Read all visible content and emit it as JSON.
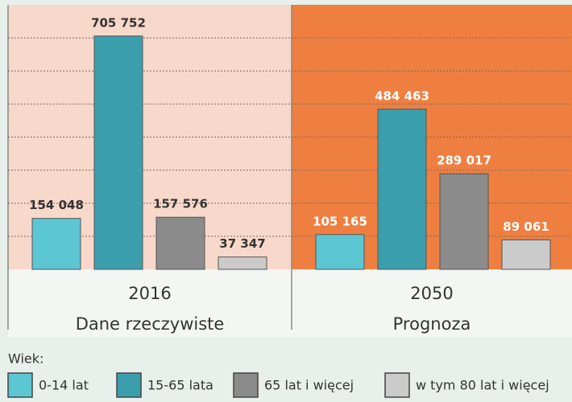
{
  "chart_data": {
    "type": "bar",
    "categories": [
      "2016",
      "2050"
    ],
    "category_subtitles": [
      "Dane rzeczywiste",
      "Prognoza"
    ],
    "series": [
      {
        "name": "0-14 lat",
        "color": "#5cc6d3",
        "values": [
          154048,
          105165
        ],
        "value_labels": [
          "154 048",
          "105 165"
        ]
      },
      {
        "name": "15-65 lata",
        "color": "#3b9eac",
        "values": [
          705752,
          484463
        ],
        "value_labels": [
          "705 752",
          "484 463"
        ]
      },
      {
        "name": "65 lat i więcej",
        "color": "#8b8b8b",
        "values": [
          157576,
          289017
        ],
        "value_labels": [
          "157 576",
          "289 017"
        ]
      },
      {
        "name": "w tym 80 lat i więcej",
        "color": "#cbcbcb",
        "values": [
          37347,
          89061
        ],
        "value_labels": [
          "37 347",
          "89 061"
        ]
      }
    ],
    "legend_title": "Wiek:",
    "ylim": [
      0,
      800000
    ],
    "yticks": [
      0,
      100000,
      200000,
      300000,
      400000,
      500000,
      600000,
      700000
    ],
    "grid": true
  }
}
